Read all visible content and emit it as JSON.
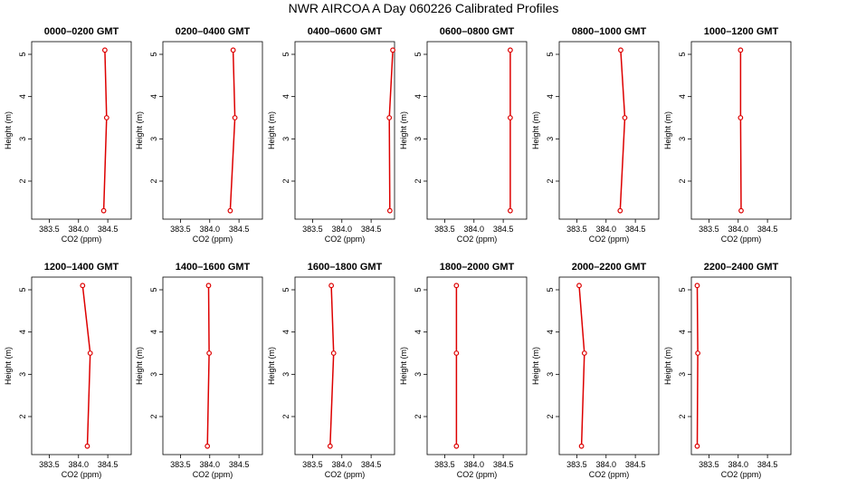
{
  "title": "NWR AIRCOA A  Day 060226  Calibrated Profiles",
  "chart_data": [
    {
      "type": "line",
      "title": "0000–0200 GMT",
      "xlabel": "CO2 (ppm)",
      "ylabel": "Height (m)",
      "xlim": [
        383.2,
        384.9
      ],
      "ylim": [
        1.1,
        5.3
      ],
      "xticks": [
        "383.5",
        "384.0",
        "384.5"
      ],
      "yticks": [
        "2",
        "3",
        "4",
        "5"
      ],
      "points": [
        {
          "x": 384.45,
          "y": 5.1
        },
        {
          "x": 384.48,
          "y": 3.5
        },
        {
          "x": 384.43,
          "y": 1.3
        }
      ]
    },
    {
      "type": "line",
      "title": "0200–0400 GMT",
      "xlabel": "CO2 (ppm)",
      "ylabel": "Height (m)",
      "xlim": [
        383.2,
        384.9
      ],
      "ylim": [
        1.1,
        5.3
      ],
      "xticks": [
        "383.5",
        "384.0",
        "384.5"
      ],
      "yticks": [
        "2",
        "3",
        "4",
        "5"
      ],
      "points": [
        {
          "x": 384.4,
          "y": 5.1
        },
        {
          "x": 384.43,
          "y": 3.5
        },
        {
          "x": 384.35,
          "y": 1.3
        }
      ]
    },
    {
      "type": "line",
      "title": "0400–0600 GMT",
      "xlabel": "CO2 (ppm)",
      "ylabel": "Height (m)",
      "xlim": [
        383.2,
        384.9
      ],
      "ylim": [
        1.1,
        5.3
      ],
      "xticks": [
        "383.5",
        "384.0",
        "384.5"
      ],
      "yticks": [
        "2",
        "3",
        "4",
        "5"
      ],
      "points": [
        {
          "x": 384.87,
          "y": 5.1
        },
        {
          "x": 384.81,
          "y": 3.5
        },
        {
          "x": 384.82,
          "y": 1.3
        }
      ]
    },
    {
      "type": "line",
      "title": "0600–0800 GMT",
      "xlabel": "CO2 (ppm)",
      "ylabel": "Height (m)",
      "xlim": [
        383.2,
        384.9
      ],
      "ylim": [
        1.1,
        5.3
      ],
      "xticks": [
        "383.5",
        "384.0",
        "384.5"
      ],
      "yticks": [
        "2",
        "3",
        "4",
        "5"
      ],
      "points": [
        {
          "x": 384.62,
          "y": 5.1
        },
        {
          "x": 384.62,
          "y": 3.5
        },
        {
          "x": 384.62,
          "y": 1.3
        }
      ]
    },
    {
      "type": "line",
      "title": "0800–1000 GMT",
      "xlabel": "CO2 (ppm)",
      "ylabel": "Height (m)",
      "xlim": [
        383.2,
        384.9
      ],
      "ylim": [
        1.1,
        5.3
      ],
      "xticks": [
        "383.5",
        "384.0",
        "384.5"
      ],
      "yticks": [
        "2",
        "3",
        "4",
        "5"
      ],
      "points": [
        {
          "x": 384.25,
          "y": 5.1
        },
        {
          "x": 384.32,
          "y": 3.5
        },
        {
          "x": 384.24,
          "y": 1.3
        }
      ]
    },
    {
      "type": "line",
      "title": "1000–1200 GMT",
      "xlabel": "CO2 (ppm)",
      "ylabel": "Height (m)",
      "xlim": [
        383.2,
        384.9
      ],
      "ylim": [
        1.1,
        5.3
      ],
      "xticks": [
        "383.5",
        "384.0",
        "384.5"
      ],
      "yticks": [
        "2",
        "3",
        "4",
        "5"
      ],
      "points": [
        {
          "x": 384.04,
          "y": 5.1
        },
        {
          "x": 384.04,
          "y": 3.5
        },
        {
          "x": 384.05,
          "y": 1.3
        }
      ]
    },
    {
      "type": "line",
      "title": "1200–1400 GMT",
      "xlabel": "CO2 (ppm)",
      "ylabel": "Height (m)",
      "xlim": [
        383.2,
        384.9
      ],
      "ylim": [
        1.1,
        5.3
      ],
      "xticks": [
        "383.5",
        "384.0",
        "384.5"
      ],
      "yticks": [
        "2",
        "3",
        "4",
        "5"
      ],
      "points": [
        {
          "x": 384.07,
          "y": 5.1
        },
        {
          "x": 384.2,
          "y": 3.5
        },
        {
          "x": 384.15,
          "y": 1.3
        }
      ]
    },
    {
      "type": "line",
      "title": "1400–1600 GMT",
      "xlabel": "CO2 (ppm)",
      "ylabel": "Height (m)",
      "xlim": [
        383.2,
        384.9
      ],
      "ylim": [
        1.1,
        5.3
      ],
      "xticks": [
        "383.5",
        "384.0",
        "384.5"
      ],
      "yticks": [
        "2",
        "3",
        "4",
        "5"
      ],
      "points": [
        {
          "x": 383.98,
          "y": 5.1
        },
        {
          "x": 383.99,
          "y": 3.5
        },
        {
          "x": 383.96,
          "y": 1.3
        }
      ]
    },
    {
      "type": "line",
      "title": "1600–1800 GMT",
      "xlabel": "CO2 (ppm)",
      "ylabel": "Height (m)",
      "xlim": [
        383.2,
        384.9
      ],
      "ylim": [
        1.1,
        5.3
      ],
      "xticks": [
        "383.5",
        "384.0",
        "384.5"
      ],
      "yticks": [
        "2",
        "3",
        "4",
        "5"
      ],
      "points": [
        {
          "x": 383.82,
          "y": 5.1
        },
        {
          "x": 383.86,
          "y": 3.5
        },
        {
          "x": 383.8,
          "y": 1.3
        }
      ]
    },
    {
      "type": "line",
      "title": "1800–2000 GMT",
      "xlabel": "CO2 (ppm)",
      "ylabel": "Height (m)",
      "xlim": [
        383.2,
        384.9
      ],
      "ylim": [
        1.1,
        5.3
      ],
      "xticks": [
        "383.5",
        "384.0",
        "384.5"
      ],
      "yticks": [
        "2",
        "3",
        "4",
        "5"
      ],
      "points": [
        {
          "x": 383.7,
          "y": 5.1
        },
        {
          "x": 383.7,
          "y": 3.5
        },
        {
          "x": 383.7,
          "y": 1.3
        }
      ]
    },
    {
      "type": "line",
      "title": "2000–2200 GMT",
      "xlabel": "CO2 (ppm)",
      "ylabel": "Height (m)",
      "xlim": [
        383.2,
        384.9
      ],
      "ylim": [
        1.1,
        5.3
      ],
      "xticks": [
        "383.5",
        "384.0",
        "384.5"
      ],
      "yticks": [
        "2",
        "3",
        "4",
        "5"
      ],
      "points": [
        {
          "x": 383.54,
          "y": 5.1
        },
        {
          "x": 383.63,
          "y": 3.5
        },
        {
          "x": 383.58,
          "y": 1.3
        }
      ]
    },
    {
      "type": "line",
      "title": "2200–2400 GMT",
      "xlabel": "CO2 (ppm)",
      "ylabel": "Height (m)",
      "xlim": [
        383.2,
        384.9
      ],
      "ylim": [
        1.1,
        5.3
      ],
      "xticks": [
        "383.5",
        "384.0",
        "384.5"
      ],
      "yticks": [
        "2",
        "3",
        "4",
        "5"
      ],
      "points": [
        {
          "x": 383.3,
          "y": 5.1
        },
        {
          "x": 383.31,
          "y": 3.5
        },
        {
          "x": 383.3,
          "y": 1.3
        }
      ]
    }
  ],
  "colors": {
    "line": "#dd0000",
    "axis": "#000000"
  }
}
